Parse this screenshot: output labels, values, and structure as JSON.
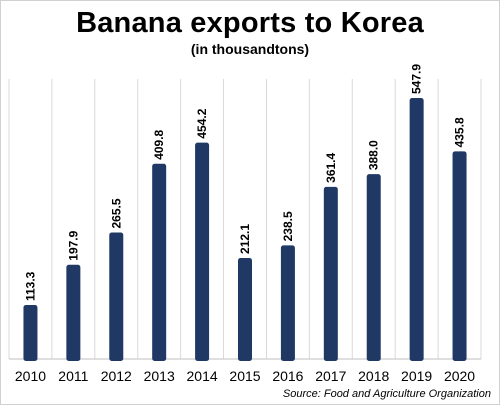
{
  "chart_data": {
    "type": "bar",
    "title": "Banana exports to Korea",
    "subtitle": "(in thousandtons)",
    "categories": [
      "2010",
      "2011",
      "2012",
      "2013",
      "2014",
      "2015",
      "2016",
      "2017",
      "2018",
      "2019",
      "2020"
    ],
    "values": [
      113.3,
      197.9,
      265.5,
      409.8,
      454.2,
      212.1,
      238.5,
      361.4,
      388.0,
      547.9,
      435.8
    ],
    "value_labels": [
      "113.3",
      "197.9",
      "265.5",
      "409.8",
      "454.2",
      "212.1",
      "238.5",
      "361.4",
      "388.0",
      "547.9",
      "435.8"
    ],
    "xlabel": "",
    "ylabel": "",
    "ylim": [
      0,
      547.9
    ],
    "grid": "vertical",
    "legend": "none",
    "bar_color": "#1f3864",
    "grid_color": "#d9d9d9",
    "source": "Source: Food and Agriculture Organization"
  }
}
